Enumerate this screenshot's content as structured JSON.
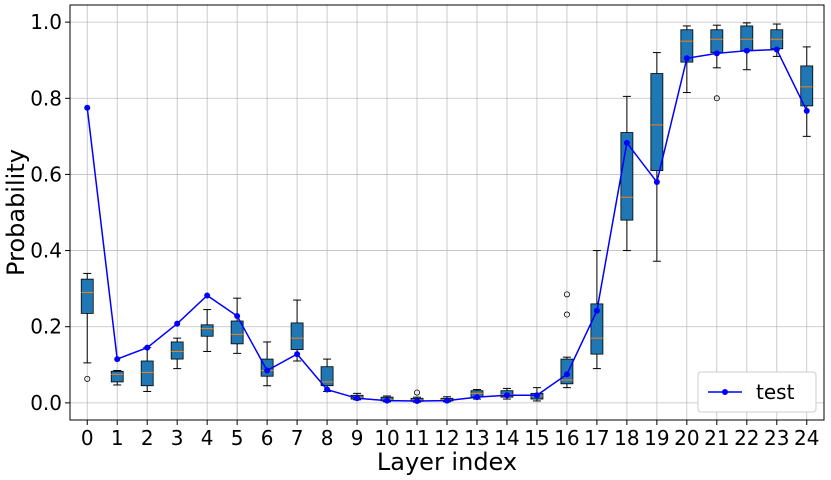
{
  "chart_data": {
    "type": "box",
    "xlabel": "Layer index",
    "ylabel": "Probability",
    "ylim": [
      -0.045,
      1.045
    ],
    "yticks": [
      0.0,
      0.2,
      0.4,
      0.6,
      0.8,
      1.0
    ],
    "ytick_labels": [
      "0.0",
      "0.2",
      "0.4",
      "0.6",
      "0.8",
      "1.0"
    ],
    "categories": [
      "0",
      "1",
      "2",
      "3",
      "4",
      "5",
      "6",
      "7",
      "8",
      "9",
      "10",
      "11",
      "12",
      "13",
      "14",
      "15",
      "16",
      "17",
      "18",
      "19",
      "20",
      "21",
      "22",
      "23",
      "24"
    ],
    "grid": true,
    "legend_position": "lower-right",
    "colors": {
      "box": "#1f77b4",
      "median": "#ff7f0e",
      "line": "#0000ff",
      "grid": "#b0b0b0"
    },
    "boxes": [
      {
        "low": 0.105,
        "q1": 0.235,
        "median": 0.29,
        "q3": 0.325,
        "high": 0.34,
        "outliers": [
          0.063
        ]
      },
      {
        "low": 0.047,
        "q1": 0.055,
        "median": 0.075,
        "q3": 0.083,
        "high": 0.085,
        "outliers": []
      },
      {
        "low": 0.03,
        "q1": 0.045,
        "median": 0.08,
        "q3": 0.11,
        "high": 0.145,
        "outliers": []
      },
      {
        "low": 0.09,
        "q1": 0.115,
        "median": 0.135,
        "q3": 0.16,
        "high": 0.17,
        "outliers": []
      },
      {
        "low": 0.135,
        "q1": 0.175,
        "median": 0.195,
        "q3": 0.205,
        "high": 0.245,
        "outliers": []
      },
      {
        "low": 0.13,
        "q1": 0.155,
        "median": 0.18,
        "q3": 0.215,
        "high": 0.275,
        "outliers": []
      },
      {
        "low": 0.045,
        "q1": 0.07,
        "median": 0.085,
        "q3": 0.115,
        "high": 0.16,
        "outliers": []
      },
      {
        "low": 0.11,
        "q1": 0.14,
        "median": 0.17,
        "q3": 0.21,
        "high": 0.27,
        "outliers": []
      },
      {
        "low": 0.03,
        "q1": 0.045,
        "median": 0.055,
        "q3": 0.095,
        "high": 0.115,
        "outliers": []
      },
      {
        "low": 0.008,
        "q1": 0.01,
        "median": 0.015,
        "q3": 0.02,
        "high": 0.025,
        "outliers": []
      },
      {
        "low": 0.003,
        "q1": 0.005,
        "median": 0.008,
        "q3": 0.015,
        "high": 0.018,
        "outliers": []
      },
      {
        "low": 0.002,
        "q1": 0.004,
        "median": 0.007,
        "q3": 0.012,
        "high": 0.015,
        "outliers": [
          0.027
        ]
      },
      {
        "low": 0.003,
        "q1": 0.005,
        "median": 0.008,
        "q3": 0.012,
        "high": 0.016,
        "outliers": []
      },
      {
        "low": 0.01,
        "q1": 0.015,
        "median": 0.025,
        "q3": 0.032,
        "high": 0.035,
        "outliers": []
      },
      {
        "low": 0.01,
        "q1": 0.015,
        "median": 0.022,
        "q3": 0.032,
        "high": 0.038,
        "outliers": []
      },
      {
        "low": 0.005,
        "q1": 0.01,
        "median": 0.018,
        "q3": 0.025,
        "high": 0.04,
        "outliers": []
      },
      {
        "low": 0.04,
        "q1": 0.05,
        "median": 0.06,
        "q3": 0.115,
        "high": 0.12,
        "outliers": [
          0.232,
          0.285
        ]
      },
      {
        "low": 0.09,
        "q1": 0.128,
        "median": 0.17,
        "q3": 0.26,
        "high": 0.4,
        "outliers": []
      },
      {
        "low": 0.4,
        "q1": 0.48,
        "median": 0.54,
        "q3": 0.71,
        "high": 0.805,
        "outliers": []
      },
      {
        "low": 0.372,
        "q1": 0.61,
        "median": 0.73,
        "q3": 0.865,
        "high": 0.92,
        "outliers": []
      },
      {
        "low": 0.815,
        "q1": 0.895,
        "median": 0.95,
        "q3": 0.98,
        "high": 0.99,
        "outliers": []
      },
      {
        "low": 0.88,
        "q1": 0.92,
        "median": 0.955,
        "q3": 0.98,
        "high": 0.992,
        "outliers": [
          0.8
        ]
      },
      {
        "low": 0.875,
        "q1": 0.925,
        "median": 0.955,
        "q3": 0.99,
        "high": 0.998,
        "outliers": []
      },
      {
        "low": 0.91,
        "q1": 0.93,
        "median": 0.955,
        "q3": 0.98,
        "high": 0.995,
        "outliers": []
      },
      {
        "low": 0.7,
        "q1": 0.78,
        "median": 0.83,
        "q3": 0.885,
        "high": 0.935,
        "outliers": []
      }
    ],
    "series": [
      {
        "name": "test",
        "values": [
          0.775,
          0.115,
          0.145,
          0.208,
          0.282,
          0.228,
          0.085,
          0.128,
          0.035,
          0.012,
          0.006,
          0.005,
          0.006,
          0.015,
          0.02,
          0.02,
          0.075,
          0.242,
          0.683,
          0.58,
          0.905,
          0.918,
          0.925,
          0.928,
          0.767
        ]
      }
    ]
  }
}
